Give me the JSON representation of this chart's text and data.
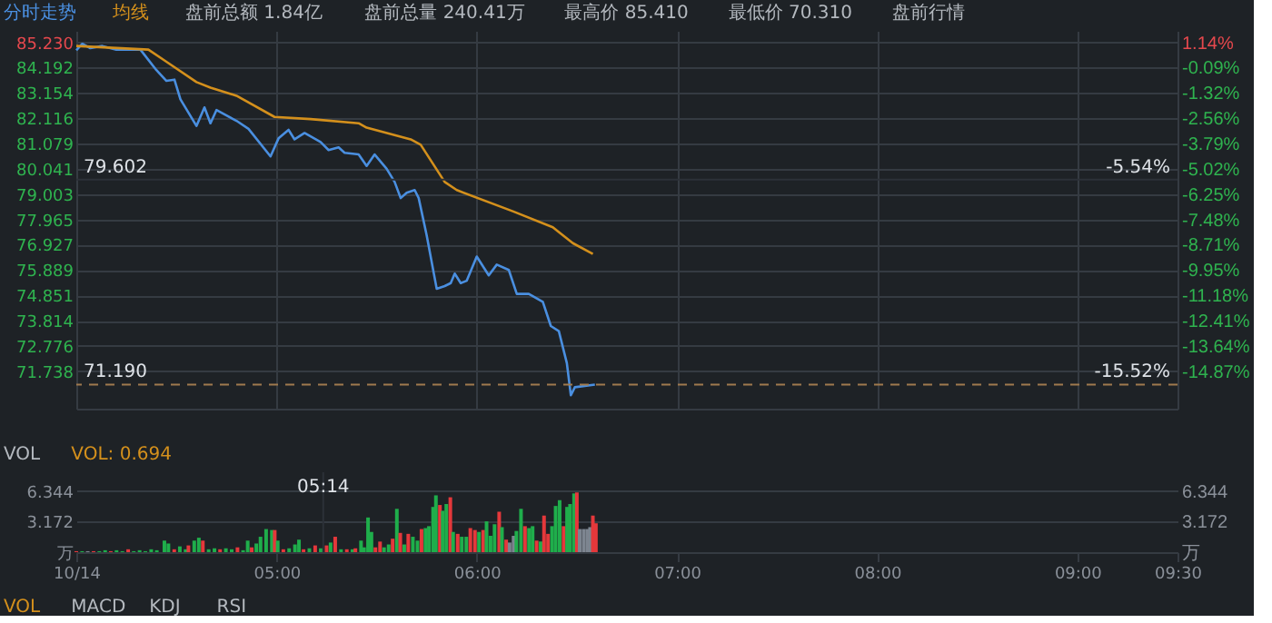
{
  "chart_data": [
    {
      "type": "line",
      "legend": "top left",
      "tick_labels": "y",
      "grid": true,
      "line_style": "solid",
      "xlim": [
        4,
        9.5
      ],
      "xticks": [
        4,
        5,
        6,
        7,
        8,
        9,
        9.5
      ],
      "ylim": [
        70.2,
        85.7
      ],
      "yticks": [
        {
          "value": 85.23,
          "label": "85.230"
        },
        84.192,
        83.154,
        82.116,
        81.079,
        80.041,
        79.003,
        77.965,
        76.927,
        75.889,
        74.851,
        73.814,
        72.776,
        71.738
      ],
      "y2lim": [
        -16.7,
        1.7
      ],
      "y2ticks": [
        {
          "value": 1.14,
          "label": "1.14%"
        },
        {
          "value": -0.09,
          "label": "-0.09%"
        },
        {
          "value": -1.32,
          "label": "-1.32%"
        },
        {
          "value": -2.56,
          "label": "-2.56%"
        },
        {
          "value": -3.79,
          "label": "-3.79%"
        },
        {
          "value": -5.02,
          "label": "-5.02%"
        },
        {
          "value": -6.25,
          "label": "-6.25%"
        },
        {
          "value": -7.48,
          "label": "-7.48%"
        },
        {
          "value": -8.71,
          "label": "-8.71%"
        },
        {
          "value": -9.95,
          "label": "-9.95%"
        },
        {
          "value": -11.18,
          "label": "-11.18%"
        },
        {
          "value": -12.41,
          "label": "-12.41%"
        },
        {
          "value": -13.64,
          "label": "-13.64%"
        },
        {
          "value": -14.87,
          "label": "-14.87%"
        }
      ],
      "series": [
        {
          "name": "分时走势",
          "color": "#4a8fe0",
          "x": [
            4.0,
            4.03,
            4.07,
            4.13,
            4.2,
            4.32,
            4.4,
            4.45,
            4.49,
            4.52,
            4.6,
            4.64,
            4.67,
            4.7,
            4.8,
            4.86,
            4.97,
            5.01,
            5.06,
            5.09,
            5.14,
            5.22,
            5.26,
            5.31,
            5.34,
            5.41,
            5.45,
            5.49,
            5.55,
            5.59,
            5.62,
            5.65,
            5.69,
            5.71,
            5.75,
            5.8,
            5.84,
            5.87,
            5.89,
            5.92,
            5.95,
            6.0,
            6.06,
            6.1,
            6.16,
            6.2,
            6.26,
            6.33,
            6.37,
            6.41,
            6.45,
            6.47,
            6.49,
            6.59
          ],
          "values": [
            84.9,
            85.17,
            84.99,
            85.08,
            84.93,
            84.93,
            84.09,
            83.65,
            83.7,
            82.89,
            81.8,
            82.56,
            81.91,
            82.45,
            82.01,
            81.68,
            80.55,
            81.29,
            81.64,
            81.25,
            81.51,
            81.14,
            80.81,
            80.92,
            80.7,
            80.63,
            80.16,
            80.63,
            80.04,
            79.5,
            78.84,
            79.06,
            79.17,
            78.84,
            77.31,
            75.12,
            75.23,
            75.35,
            75.74,
            75.35,
            75.45,
            76.44,
            75.67,
            76.11,
            75.89,
            74.91,
            74.91,
            74.58,
            73.59,
            73.38,
            72.07,
            70.75,
            71.08,
            71.19
          ]
        },
        {
          "name": "均线",
          "color": "#d4901c",
          "x": [
            4.0,
            4.36,
            4.44,
            4.6,
            4.67,
            4.8,
            4.99,
            5.17,
            5.41,
            5.45,
            5.67,
            5.72,
            5.84,
            5.9,
            6.18,
            6.38,
            6.48,
            6.58
          ],
          "values": [
            85.08,
            84.93,
            84.49,
            83.6,
            83.37,
            83.04,
            82.17,
            82.08,
            81.91,
            81.73,
            81.25,
            81.03,
            79.5,
            79.17,
            78.3,
            77.64,
            76.99,
            76.55
          ]
        }
      ],
      "ref_lines": [
        {
          "axis": "y",
          "value": 71.19,
          "label": "71.190",
          "color": "#a07a4e",
          "line_style": "dashed"
        },
        {
          "axis": "y",
          "value": 79.602,
          "label": "79.602",
          "color": "#2c3138",
          "line_style": "solid"
        }
      ],
      "annotations": [
        "盘前总额 1.84亿",
        "盘前总量 240.41万",
        "最高价 85.410",
        "最低价 70.310",
        "盘前行情",
        {
          "text": "-15.52%",
          "x": 9.5,
          "y": 71.19
        },
        {
          "text": "-5.54%",
          "x": 9.5,
          "y": 79.602
        }
      ]
    },
    {
      "type": "bar",
      "title": "VOL",
      "subtitle": "VOL: 0.694",
      "grid": "y",
      "xlim": [
        4,
        9.5
      ],
      "xticks": [
        {
          "value": 4,
          "label": "10/14"
        },
        {
          "value": 5,
          "label": "05:00"
        },
        {
          "value": 6,
          "label": "06:00"
        },
        {
          "value": 7,
          "label": "07:00"
        },
        {
          "value": 8,
          "label": "08:00"
        },
        {
          "value": 9,
          "label": "09:00"
        },
        {
          "value": 9.5,
          "label": "09:30"
        }
      ],
      "ylim": [
        0,
        8.3
      ],
      "yticks": [
        {
          "value": 0,
          "label": "万"
        },
        3.172,
        6.344
      ],
      "y2lim": [
        0,
        8.3
      ],
      "y2ticks": [
        {
          "value": 0,
          "label": "万"
        },
        3.172,
        6.344
      ],
      "x": [
        4.0,
        4.029,
        4.057,
        4.086,
        4.115,
        4.144,
        4.172,
        4.201,
        4.23,
        4.259,
        4.287,
        4.316,
        4.345,
        4.374,
        4.402,
        4.44,
        4.46,
        4.489,
        4.517,
        4.546,
        4.56,
        4.589,
        4.612,
        4.632,
        4.661,
        4.69,
        4.718,
        4.747,
        4.776,
        4.805,
        4.833,
        4.856,
        4.876,
        4.899,
        4.92,
        4.948,
        4.977,
        4.991,
        5.006,
        5.034,
        5.063,
        5.092,
        5.112,
        5.135,
        5.164,
        5.193,
        5.221,
        5.25,
        5.27,
        5.293,
        5.322,
        5.351,
        5.379,
        5.394,
        5.422,
        5.437,
        5.457,
        5.474,
        5.494,
        5.517,
        5.537,
        5.56,
        5.58,
        5.601,
        5.618,
        5.638,
        5.658,
        5.681,
        5.704,
        5.724,
        5.744,
        5.761,
        5.782,
        5.796,
        5.816,
        5.83,
        5.848,
        5.868,
        5.882,
        5.905,
        5.925,
        5.948,
        5.968,
        5.991,
        6.011,
        6.032,
        6.049,
        6.069,
        6.089,
        6.112,
        6.126,
        6.147,
        6.164,
        6.184,
        6.198,
        6.221,
        6.241,
        6.261,
        6.279,
        6.299,
        6.319,
        6.336,
        6.356,
        6.376,
        6.394,
        6.414,
        6.434,
        6.451,
        6.466,
        6.486,
        6.5,
        6.514,
        6.534,
        6.552,
        6.566,
        6.58,
        6.595
      ],
      "values": [
        0.1,
        0.1,
        0.1,
        0.1,
        0.1,
        0.2,
        0.1,
        0.2,
        0.1,
        0.3,
        0.1,
        0.2,
        0.1,
        0.3,
        0.2,
        1.2,
        0.9,
        0.3,
        0.6,
        0.3,
        0.7,
        1.2,
        1.5,
        1.2,
        0.3,
        0.4,
        0.3,
        0.4,
        0.3,
        0.5,
        0.2,
        1.2,
        0.5,
        0.9,
        1.6,
        2.4,
        2.3,
        2.3,
        1.2,
        0.3,
        0.4,
        0.8,
        1.3,
        0.3,
        0.4,
        0.7,
        0.4,
        0.7,
        1.0,
        1.6,
        0.3,
        0.3,
        0.3,
        0.4,
        1.2,
        0.5,
        3.6,
        2.1,
        0.5,
        1.1,
        0.5,
        0.8,
        1.4,
        4.5,
        2.0,
        0.8,
        1.9,
        1.6,
        1.2,
        2.4,
        2.5,
        2.7,
        4.7,
        5.9,
        4.9,
        4.3,
        5.0,
        5.7,
        2.1,
        1.9,
        1.6,
        1.6,
        2.5,
        2.3,
        2.1,
        2.3,
        3.2,
        1.7,
        2.9,
        4.2,
        2.6,
        1.3,
        1.0,
        1.7,
        2.2,
        4.5,
        2.7,
        2.5,
        2.7,
        1.2,
        1.1,
        3.8,
        1.9,
        2.7,
        4.8,
        5.4,
        2.7,
        4.7,
        5.0,
        6.1,
        6.2,
        2.4,
        2.4,
        2.4,
        2.6,
        3.8,
        3.0
      ],
      "colors": [
        "#e5383b",
        "#1fae4b",
        "#7d8590",
        "#e5383b",
        "#1fae4b",
        "#1fae4b",
        "#e5383b",
        "#1fae4b",
        "#1fae4b",
        "#e5383b",
        "#1fae4b",
        "#1fae4b",
        "#1fae4b",
        "#1fae4b",
        "#1fae4b",
        "#1fae4b",
        "#1fae4b",
        "#e5383b",
        "#1fae4b",
        "#1fae4b",
        "#e5383b",
        "#1fae4b",
        "#1fae4b",
        "#e5383b",
        "#1fae4b",
        "#1fae4b",
        "#e5383b",
        "#1fae4b",
        "#1fae4b",
        "#e5383b",
        "#1fae4b",
        "#1fae4b",
        "#e5383b",
        "#1fae4b",
        "#1fae4b",
        "#1fae4b",
        "#1fae4b",
        "#e5383b",
        "#1fae4b",
        "#e5383b",
        "#1fae4b",
        "#1fae4b",
        "#1fae4b",
        "#e5383b",
        "#1fae4b",
        "#e5383b",
        "#1fae4b",
        "#e5383b",
        "#1fae4b",
        "#e5383b",
        "#1fae4b",
        "#e5383b",
        "#1fae4b",
        "#e5383b",
        "#1fae4b",
        "#1fae4b",
        "#1fae4b",
        "#1fae4b",
        "#e5383b",
        "#e5383b",
        "#1fae4b",
        "#1fae4b",
        "#e5383b",
        "#1fae4b",
        "#e5383b",
        "#1fae4b",
        "#e5383b",
        "#1fae4b",
        "#1fae4b",
        "#e5383b",
        "#1fae4b",
        "#1fae4b",
        "#1fae4b",
        "#1fae4b",
        "#e5383b",
        "#1fae4b",
        "#1fae4b",
        "#e5383b",
        "#1fae4b",
        "#e5383b",
        "#1fae4b",
        "#1fae4b",
        "#e5383b",
        "#e5383b",
        "#1fae4b",
        "#e5383b",
        "#1fae4b",
        "#1fae4b",
        "#1fae4b",
        "#e5383b",
        "#1fae4b",
        "#e5383b",
        "#7d8590",
        "#7d8590",
        "#1fae4b",
        "#1fae4b",
        "#e5383b",
        "#1fae4b",
        "#1fae4b",
        "#e5383b",
        "#1fae4b",
        "#e5383b",
        "#e5383b",
        "#1fae4b",
        "#1fae4b",
        "#1fae4b",
        "#e5383b",
        "#1fae4b",
        "#1fae4b",
        "#1fae4b",
        "#e5383b",
        "#7d8590",
        "#7d8590",
        "#7d8590",
        "#7d8590",
        "#e5383b",
        "#e5383b"
      ],
      "ref_lines": [
        {
          "axis": "x",
          "value": 5.2333,
          "label": "05:14",
          "color": "#2c3138",
          "line_style": "solid"
        }
      ],
      "annotations": [
        "VOL",
        "MACD",
        "KDJ",
        "RSI"
      ]
    }
  ]
}
